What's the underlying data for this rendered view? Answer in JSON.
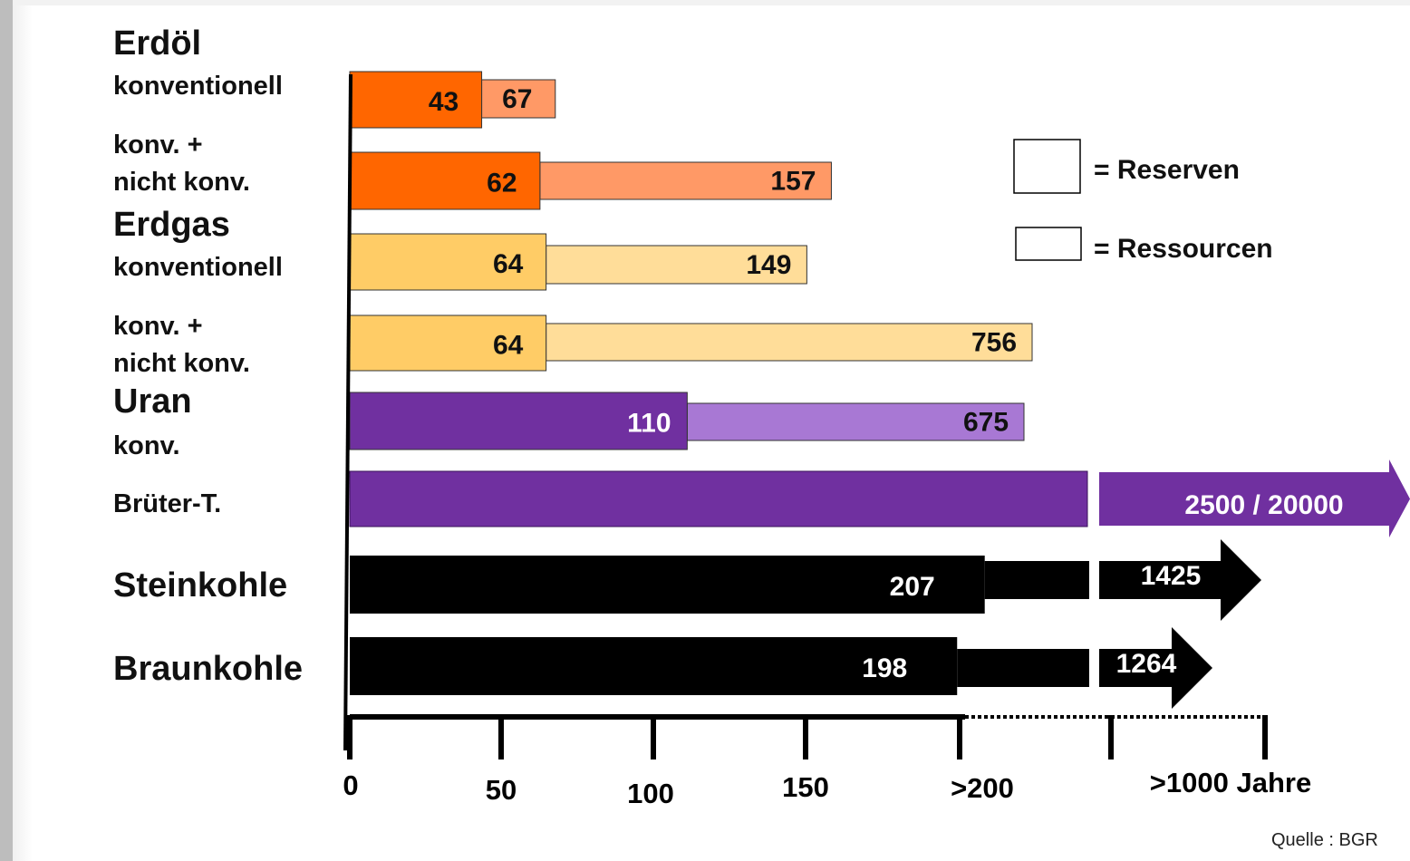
{
  "chart_data": {
    "type": "bar",
    "stacked": true,
    "orientation": "horizontal",
    "unit": "Jahre",
    "x_ticks": [
      "0",
      "50",
      "100",
      "150",
      ">200",
      ">1000 Jahre"
    ],
    "groups": [
      {
        "name": "Erdöl",
        "color_reserve": "#ff6600",
        "color_resource": "#ff9966"
      },
      {
        "name": "Erdgas",
        "color_reserve": "#ffcc66",
        "color_resource": "#ffdd99"
      },
      {
        "name": "Uran",
        "color_reserve": "#7030a0",
        "color_resource": "#a878d4"
      }
    ],
    "rows": [
      {
        "group": "Erdöl",
        "label": [
          "konventionell"
        ],
        "reserve": 43,
        "resource": 67
      },
      {
        "group": "Erdöl",
        "label": [
          "konv. +",
          "nicht konv."
        ],
        "reserve": 62,
        "resource": 157
      },
      {
        "group": "Erdgas",
        "label": [
          "konventionell"
        ],
        "reserve": 64,
        "resource": 149
      },
      {
        "group": "Erdgas",
        "label": [
          "konv. +",
          "nicht konv."
        ],
        "reserve": 64,
        "resource": 756
      },
      {
        "group": "Uran",
        "label": [
          "konv."
        ],
        "reserve": 110,
        "resource": 675
      },
      {
        "group": "Uran",
        "label": [
          "Brüter-T."
        ],
        "reserve": null,
        "resource": null,
        "combined_label": "2500 / 20000"
      },
      {
        "group": null,
        "label": [
          "Steinkohle"
        ],
        "reserve": 207,
        "resource": 1425
      },
      {
        "group": null,
        "label": [
          "Braunkohle"
        ],
        "reserve": 198,
        "resource": 1264
      }
    ],
    "legend": [
      {
        "label": "= Reserven"
      },
      {
        "label": "= Ressourcen"
      }
    ],
    "source": "Quelle : BGR"
  }
}
